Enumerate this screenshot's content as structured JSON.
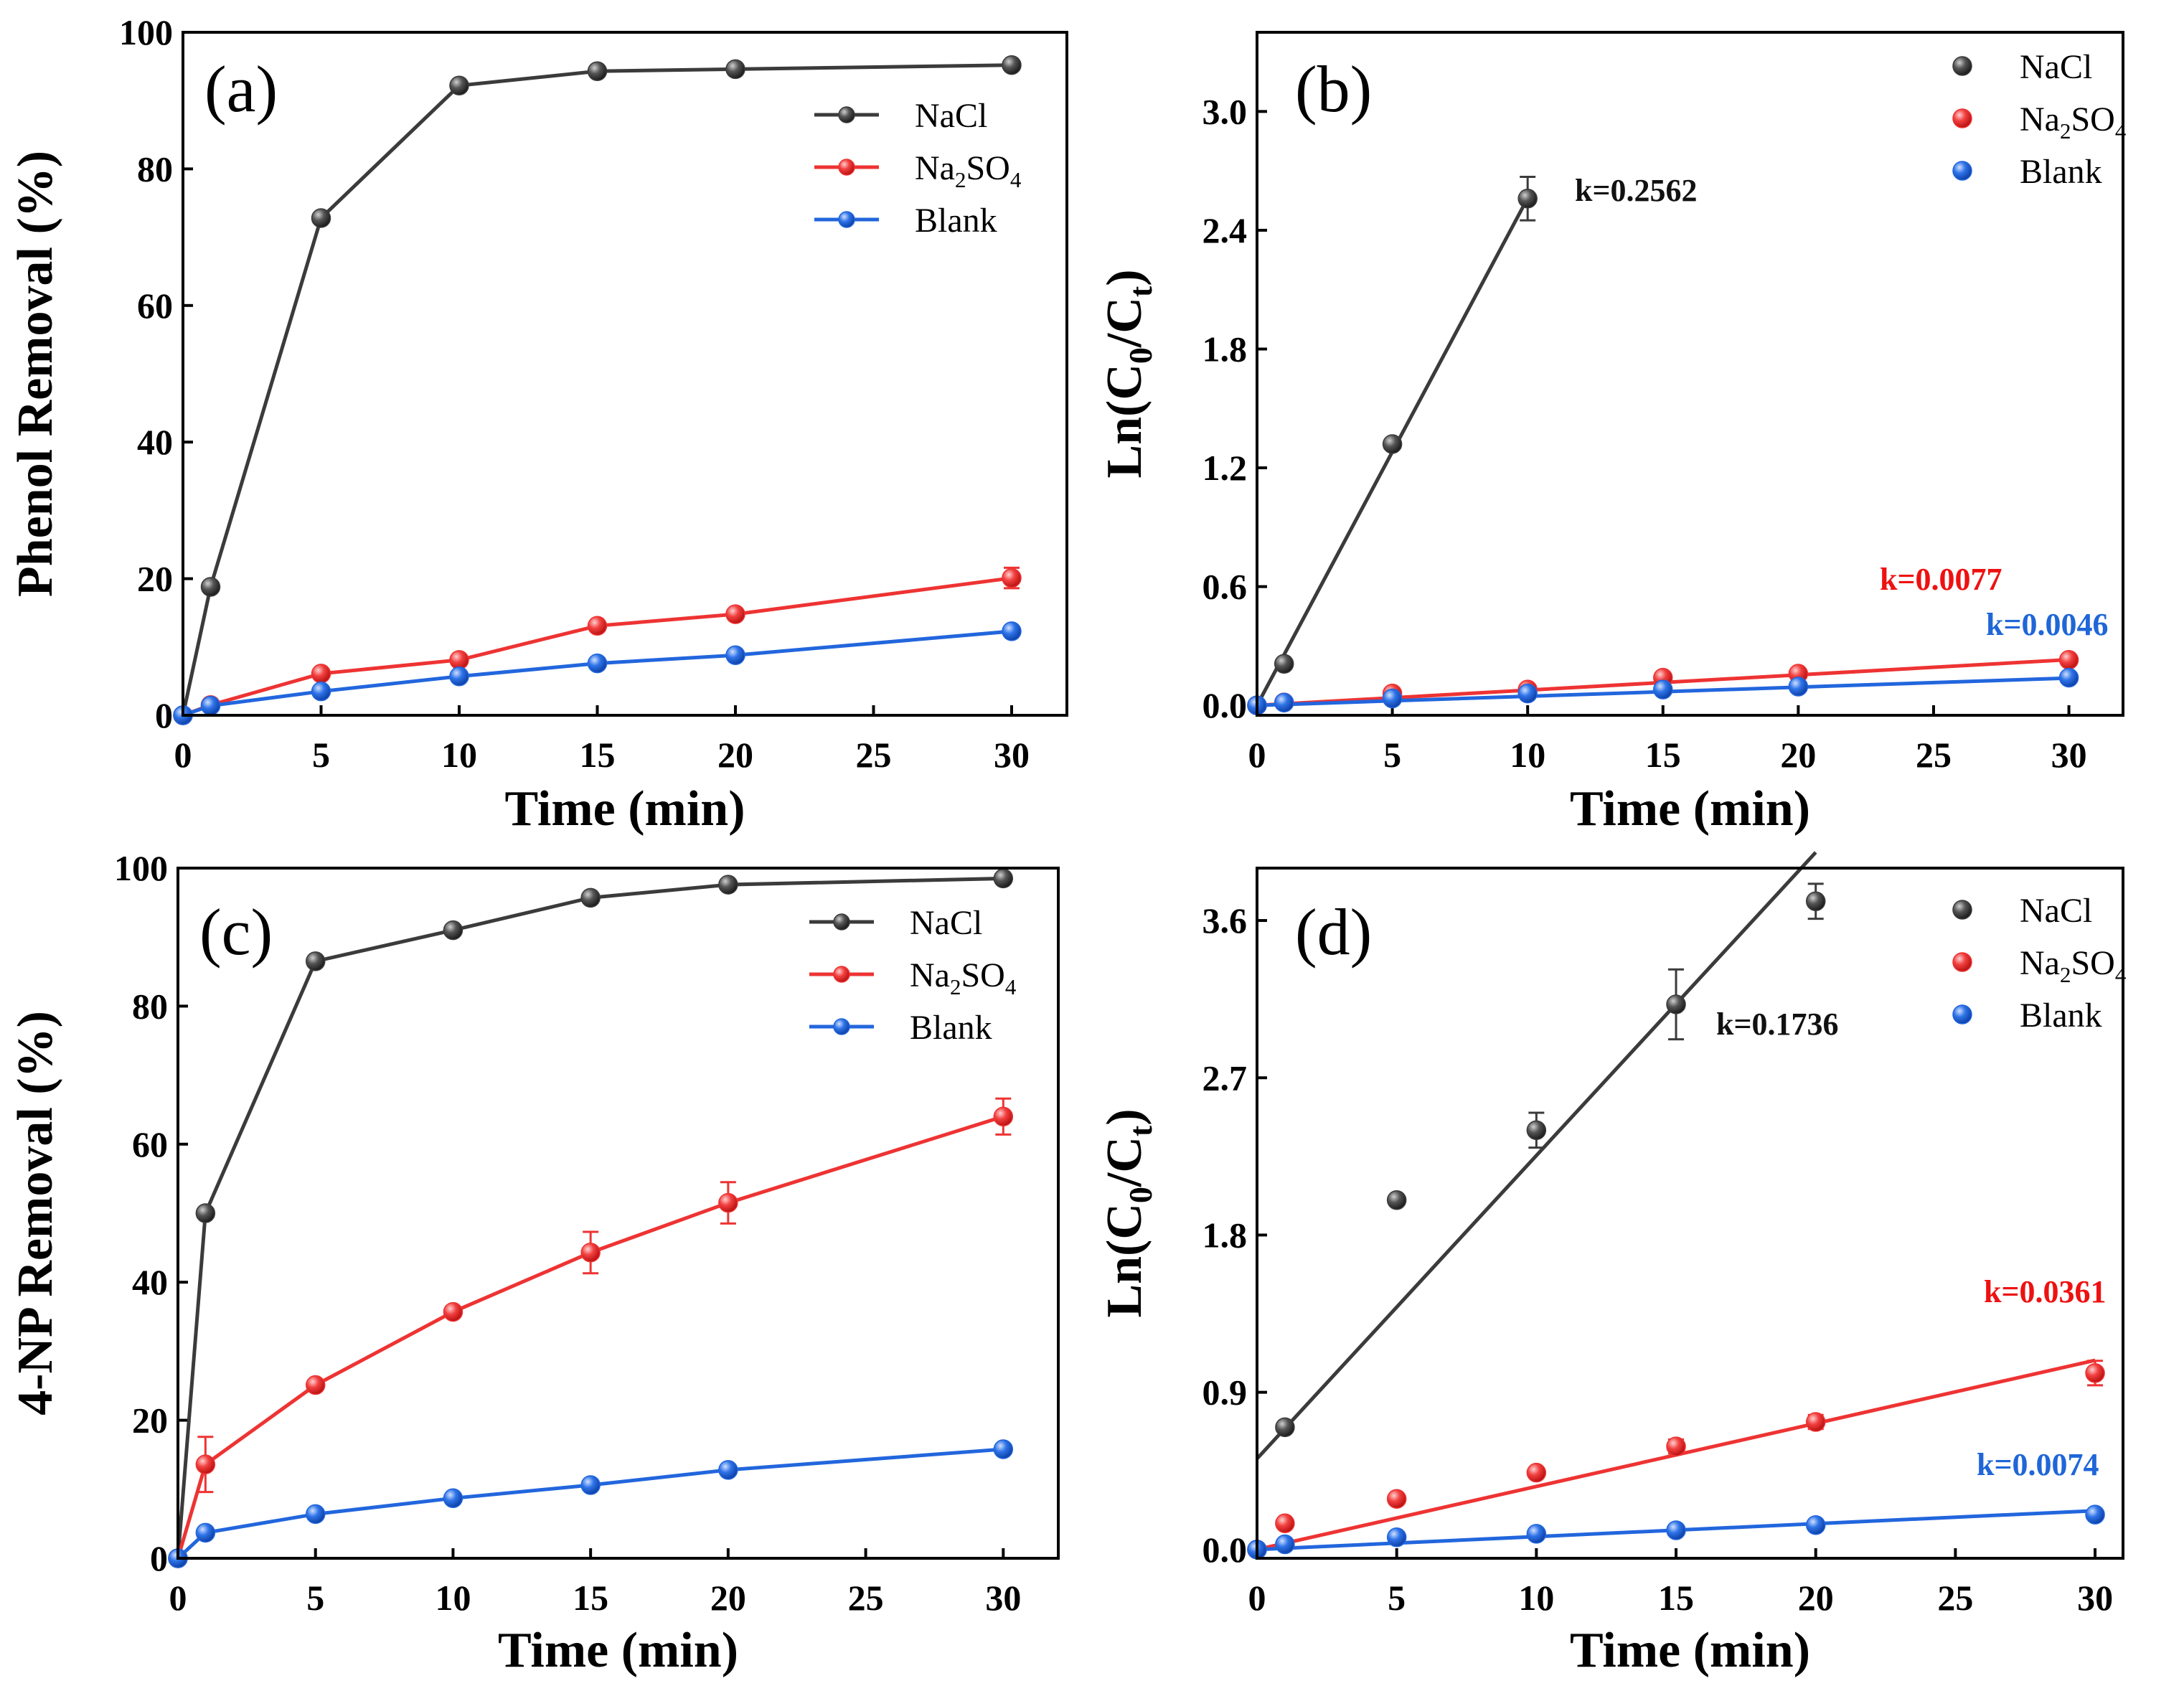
{
  "colors": {
    "NaCl": "#3b3b3b",
    "Na2SO4": "#ee3333",
    "Blank": "#2266dd",
    "Na2SO4_label": "#ee1111",
    "Blank_label": "#1f66d8"
  },
  "chart_data": [
    {
      "id": "a",
      "type": "line",
      "panel_label": "(a)",
      "xlabel": "Time (min)",
      "ylabel": "Phenol Removal (%)",
      "xlim": [
        0,
        32
      ],
      "ylim": [
        0,
        100
      ],
      "xticks": [
        0,
        5,
        10,
        15,
        20,
        25,
        30
      ],
      "yticks": [
        0,
        20,
        40,
        60,
        80,
        100
      ],
      "ytick_labels": [
        "0",
        "20",
        "40",
        "60",
        "80",
        "100"
      ],
      "legend_position": "top-right",
      "x": [
        0,
        1,
        5,
        10,
        15,
        20,
        30
      ],
      "series": [
        {
          "name": "NaCl",
          "key": "NaCl",
          "values": [
            0,
            18.8,
            72.8,
            92.2,
            94.3,
            94.6,
            95.2
          ],
          "errors": [
            0,
            0,
            0,
            0,
            0,
            0,
            0
          ]
        },
        {
          "name": "Na2SO4",
          "key": "Na2SO4",
          "values": [
            0,
            1.5,
            6.1,
            8.1,
            13.1,
            14.8,
            20.1
          ],
          "errors": [
            0,
            0,
            0,
            0,
            0,
            0,
            1.5
          ]
        },
        {
          "name": "Blank",
          "key": "Blank",
          "values": [
            0,
            1.4,
            3.5,
            5.7,
            7.6,
            8.8,
            12.3
          ],
          "errors": [
            0,
            0,
            0,
            0,
            0,
            0,
            0
          ]
        }
      ]
    },
    {
      "id": "b",
      "type": "scatter",
      "panel_label": "(b)",
      "xlabel": "Time (min)",
      "ylabel": "Ln(C0/Ct)",
      "xlim": [
        0,
        32
      ],
      "ylim": [
        -0.05,
        3.4
      ],
      "xticks": [
        0,
        5,
        10,
        15,
        20,
        25,
        30
      ],
      "yticks": [
        0,
        0.6,
        1.2,
        1.8,
        2.4,
        3.0
      ],
      "ytick_labels": [
        "0.0",
        "0.6",
        "1.2",
        "1.8",
        "2.4",
        "3.0"
      ],
      "legend_position": "top-right",
      "series": [
        {
          "name": "NaCl",
          "key": "NaCl",
          "x": [
            0,
            1,
            5,
            10
          ],
          "values": [
            0,
            0.21,
            1.32,
            2.56
          ],
          "errors": [
            0,
            0,
            0,
            0.11
          ],
          "fit": {
            "x": [
              0,
              10
            ],
            "y": [
              0,
              2.562
            ]
          },
          "k_label": "k=0.2562"
        },
        {
          "name": "Na2SO4",
          "key": "Na2SO4",
          "x": [
            0,
            1,
            5,
            10,
            15,
            20,
            30
          ],
          "values": [
            0,
            0.015,
            0.06,
            0.08,
            0.14,
            0.16,
            0.23
          ],
          "errors": [
            0,
            0,
            0,
            0,
            0,
            0,
            0
          ],
          "fit": {
            "x": [
              0,
              30
            ],
            "y": [
              0,
              0.231
            ]
          },
          "k_label": "k=0.0077"
        },
        {
          "name": "Blank",
          "key": "Blank",
          "x": [
            0,
            1,
            5,
            10,
            15,
            20,
            30
          ],
          "values": [
            0,
            0.014,
            0.035,
            0.06,
            0.08,
            0.095,
            0.14
          ],
          "errors": [
            0,
            0,
            0,
            0,
            0,
            0,
            0
          ],
          "fit": {
            "x": [
              0,
              30
            ],
            "y": [
              0,
              0.138
            ]
          },
          "k_label": "k=0.0046"
        }
      ]
    },
    {
      "id": "c",
      "type": "line",
      "panel_label": "(c)",
      "xlabel": "Time (min)",
      "ylabel": "4-NP Removal (%)",
      "xlim": [
        0,
        32
      ],
      "ylim": [
        0,
        100
      ],
      "xticks": [
        0,
        5,
        10,
        15,
        20,
        25,
        30
      ],
      "yticks": [
        0,
        20,
        40,
        60,
        80,
        100
      ],
      "ytick_labels": [
        "0",
        "20",
        "40",
        "60",
        "80",
        "100"
      ],
      "legend_position": "top-right",
      "x": [
        0,
        1,
        5,
        10,
        15,
        20,
        30
      ],
      "series": [
        {
          "name": "NaCl",
          "key": "NaCl",
          "values": [
            0,
            50,
            86.5,
            91,
            95.7,
            97.6,
            98.5
          ],
          "errors": [
            0,
            0,
            0,
            0,
            0,
            0,
            0
          ]
        },
        {
          "name": "Na2SO4",
          "key": "Na2SO4",
          "values": [
            0,
            13.6,
            25.1,
            35.7,
            44.3,
            51.5,
            64
          ],
          "errors": [
            0,
            4,
            0,
            0,
            3,
            3,
            2.6
          ]
        },
        {
          "name": "Blank",
          "key": "Blank",
          "values": [
            0,
            3.7,
            6.4,
            8.7,
            10.6,
            12.8,
            15.8
          ],
          "errors": [
            0,
            0,
            0,
            0,
            0,
            0,
            0
          ]
        }
      ]
    },
    {
      "id": "d",
      "type": "scatter",
      "panel_label": "(d)",
      "xlabel": "Time (min)",
      "ylabel": "Ln(C0/Ct)",
      "xlim": [
        0,
        31
      ],
      "ylim": [
        -0.05,
        3.9
      ],
      "xticks": [
        0,
        5,
        10,
        15,
        20,
        25,
        30
      ],
      "yticks": [
        0,
        0.9,
        1.8,
        2.7,
        3.6
      ],
      "ytick_labels": [
        "0.0",
        "0.9",
        "1.8",
        "2.7",
        "3.6"
      ],
      "legend_position": "top-right",
      "series": [
        {
          "name": "NaCl",
          "key": "NaCl",
          "x": [
            0,
            1,
            5,
            10,
            15,
            20
          ],
          "values": [
            0,
            0.7,
            2.0,
            2.4,
            3.12,
            3.71
          ],
          "errors": [
            0,
            0,
            0,
            0.1,
            0.2,
            0.1
          ],
          "fit": {
            "x": [
              0,
              20
            ],
            "y": [
              0.52,
              3.99
            ]
          },
          "k_label": "k=0.1736"
        },
        {
          "name": "Na2SO4",
          "key": "Na2SO4",
          "x": [
            0,
            1,
            5,
            10,
            15,
            20,
            30
          ],
          "values": [
            0,
            0.15,
            0.29,
            0.44,
            0.59,
            0.73,
            1.01
          ],
          "errors": [
            0,
            0,
            0,
            0,
            0.04,
            0.04,
            0.07
          ],
          "fit": {
            "x": [
              0,
              30
            ],
            "y": [
              0,
              1.083
            ]
          },
          "k_label": "k=0.0361"
        },
        {
          "name": "Blank",
          "key": "Blank",
          "x": [
            0,
            1,
            5,
            10,
            15,
            20,
            30
          ],
          "values": [
            0,
            0.03,
            0.07,
            0.09,
            0.11,
            0.14,
            0.2
          ],
          "errors": [
            0,
            0,
            0,
            0,
            0,
            0,
            0
          ],
          "fit": {
            "x": [
              0,
              30
            ],
            "y": [
              0,
              0.222
            ]
          },
          "k_label": "k=0.0074"
        }
      ]
    }
  ]
}
